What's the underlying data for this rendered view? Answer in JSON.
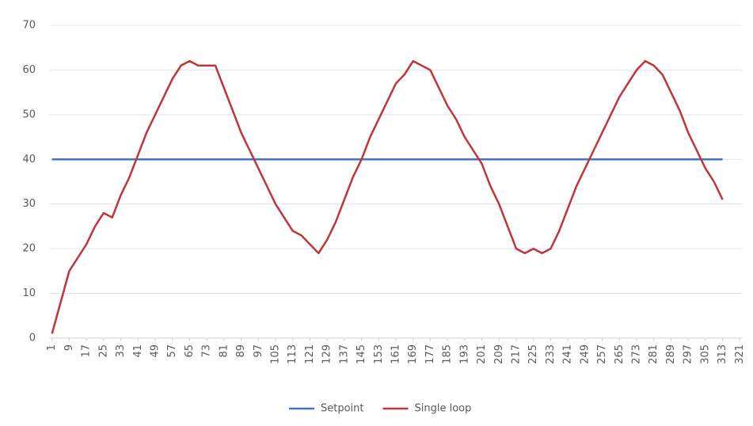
{
  "chart_data": {
    "type": "line",
    "x": [
      1,
      5,
      9,
      13,
      17,
      21,
      25,
      29,
      33,
      37,
      41,
      45,
      49,
      53,
      57,
      61,
      65,
      69,
      73,
      77,
      81,
      85,
      89,
      93,
      97,
      101,
      105,
      109,
      113,
      117,
      121,
      125,
      129,
      133,
      137,
      141,
      145,
      149,
      153,
      157,
      161,
      165,
      169,
      173,
      177,
      181,
      185,
      189,
      193,
      197,
      201,
      205,
      209,
      213,
      217,
      221,
      225,
      229,
      233,
      237,
      241,
      245,
      249,
      253,
      257,
      261,
      265,
      269,
      273,
      277,
      281,
      285,
      289,
      293,
      297,
      301,
      305,
      309,
      313
    ],
    "series": [
      {
        "name": "Setpoint",
        "color": "#4472c4",
        "values": [
          40,
          40,
          40,
          40,
          40,
          40,
          40,
          40,
          40,
          40,
          40,
          40,
          40,
          40,
          40,
          40,
          40,
          40,
          40,
          40,
          40,
          40,
          40,
          40,
          40,
          40,
          40,
          40,
          40,
          40,
          40,
          40,
          40,
          40,
          40,
          40,
          40,
          40,
          40,
          40,
          40,
          40,
          40,
          40,
          40,
          40,
          40,
          40,
          40,
          40,
          40,
          40,
          40,
          40,
          40,
          40,
          40,
          40,
          40,
          40,
          40,
          40,
          40,
          40,
          40,
          40,
          40,
          40,
          40,
          40,
          40,
          40,
          40,
          40,
          40,
          40,
          40,
          40,
          40
        ]
      },
      {
        "name": "Single loop",
        "color": "#c0343c",
        "values": [
          1,
          8,
          15,
          18,
          21,
          25,
          28,
          27,
          32,
          36,
          41,
          46,
          50,
          54,
          58,
          61,
          62,
          61,
          61,
          61,
          56,
          51,
          46,
          42,
          38,
          34,
          30,
          27,
          24,
          23,
          21,
          19,
          22,
          26,
          31,
          36,
          40,
          45,
          49,
          53,
          57,
          59,
          62,
          61,
          60,
          56,
          52,
          49,
          45,
          42,
          39,
          34,
          30,
          25,
          20,
          19,
          20,
          19,
          20,
          24,
          29,
          34,
          38,
          42,
          46,
          50,
          54,
          57,
          60,
          62,
          61,
          59,
          55,
          51,
          46,
          42,
          38,
          35,
          31
        ]
      }
    ],
    "xlim": [
      0,
      322
    ],
    "xticks": [
      1,
      9,
      17,
      25,
      33,
      41,
      49,
      57,
      65,
      73,
      81,
      89,
      97,
      105,
      113,
      121,
      129,
      137,
      145,
      153,
      161,
      169,
      177,
      185,
      193,
      201,
      209,
      217,
      225,
      233,
      241,
      249,
      257,
      265,
      273,
      281,
      289,
      297,
      305,
      313,
      321
    ],
    "ylim": [
      0,
      70
    ],
    "yticks": [
      0,
      10,
      20,
      30,
      40,
      50,
      60,
      70
    ],
    "grid": true,
    "legend": "bottom"
  }
}
